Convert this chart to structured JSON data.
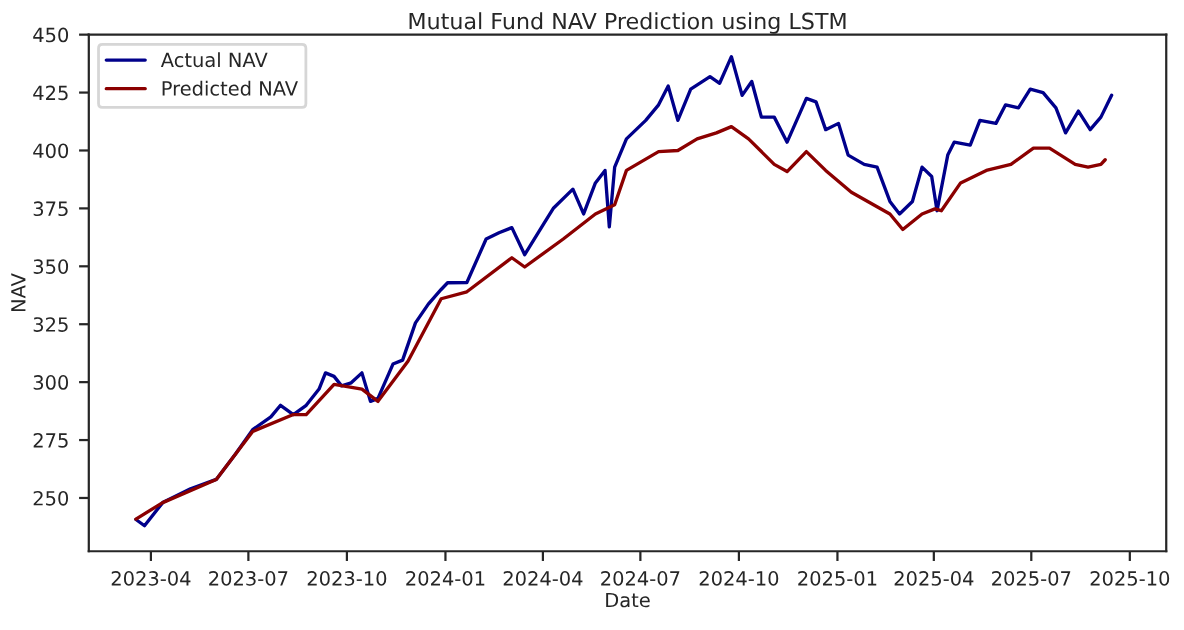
{
  "chart_data": {
    "type": "line",
    "title": "Mutual Fund NAV Prediction using LSTM",
    "xlabel": "Date",
    "ylabel": "NAV",
    "xlim": [
      "2023-02-02",
      "2025-11-04"
    ],
    "ylim": [
      227,
      450
    ],
    "xticks": [
      {
        "value": "2023-04-01",
        "label": "2023-04"
      },
      {
        "value": "2023-07-01",
        "label": "2023-07"
      },
      {
        "value": "2023-10-01",
        "label": "2023-10"
      },
      {
        "value": "2024-01-01",
        "label": "2024-01"
      },
      {
        "value": "2024-04-01",
        "label": "2024-04"
      },
      {
        "value": "2024-07-01",
        "label": "2024-07"
      },
      {
        "value": "2024-10-01",
        "label": "2024-10"
      },
      {
        "value": "2025-01-01",
        "label": "2025-01"
      },
      {
        "value": "2025-04-01",
        "label": "2025-04"
      },
      {
        "value": "2025-07-01",
        "label": "2025-07"
      },
      {
        "value": "2025-10-01",
        "label": "2025-10"
      }
    ],
    "yticks": [
      250,
      275,
      300,
      325,
      350,
      375,
      400,
      425,
      450
    ],
    "grid": false,
    "legend": "top left",
    "series": [
      {
        "name": "Actual NAV",
        "color": "#00008b",
        "x": [
          "2023-03-18",
          "2023-03-26",
          "2023-04-12",
          "2023-05-08",
          "2023-06-01",
          "2023-06-19",
          "2023-07-05",
          "2023-07-22",
          "2023-07-31",
          "2023-08-12",
          "2023-08-24",
          "2023-09-05",
          "2023-09-11",
          "2023-09-19",
          "2023-09-26",
          "2023-10-05",
          "2023-10-15",
          "2023-10-23",
          "2023-10-30",
          "2023-11-13",
          "2023-11-22",
          "2023-12-04",
          "2023-12-16",
          "2023-12-28",
          "2024-01-03",
          "2024-01-21",
          "2024-02-08",
          "2024-02-20",
          "2024-03-03",
          "2024-03-15",
          "2024-04-02",
          "2024-04-11",
          "2024-04-29",
          "2024-05-09",
          "2024-05-20",
          "2024-05-29",
          "2024-06-02",
          "2024-06-07",
          "2024-06-18",
          "2024-07-06",
          "2024-07-18",
          "2024-07-27",
          "2024-08-05",
          "2024-08-17",
          "2024-09-04",
          "2024-09-13",
          "2024-09-24",
          "2024-10-04",
          "2024-10-13",
          "2024-10-22",
          "2024-11-03",
          "2024-11-15",
          "2024-12-03",
          "2024-12-12",
          "2024-12-21",
          "2025-01-02",
          "2025-01-11",
          "2025-01-26",
          "2025-02-07",
          "2025-02-19",
          "2025-02-28",
          "2025-03-12",
          "2025-03-21",
          "2025-03-30",
          "2025-04-04",
          "2025-04-14",
          "2025-04-20",
          "2025-05-05",
          "2025-05-14",
          "2025-05-29",
          "2025-06-07",
          "2025-06-19",
          "2025-06-30",
          "2025-07-12",
          "2025-07-24",
          "2025-08-02",
          "2025-08-14",
          "2025-08-25",
          "2025-09-04",
          "2025-09-14"
        ],
        "values": [
          240.7,
          238,
          248,
          254,
          258,
          269,
          279.5,
          285,
          290,
          286,
          290,
          297,
          304,
          302.5,
          298.4,
          299.7,
          304,
          291.7,
          293,
          307.8,
          309.5,
          325.6,
          333.7,
          340,
          342.9,
          343,
          361.8,
          364.5,
          366.7,
          355,
          368.5,
          375.2,
          383.3,
          372.6,
          386,
          391.4,
          367,
          392.8,
          405,
          413,
          419.7,
          427.8,
          413,
          426.5,
          431.9,
          429,
          440.5,
          423.8,
          429.8,
          414.4,
          414.4,
          403.6,
          422.5,
          421,
          409,
          411.7,
          398,
          394,
          392.8,
          378,
          372.6,
          378,
          392.8,
          388.8,
          374,
          398,
          403.6,
          402.3,
          413,
          411.7,
          419.7,
          418.4,
          426.5,
          425,
          418.4,
          407.6,
          417,
          409,
          414.4,
          423.8
        ]
      },
      {
        "name": "Predicted NAV",
        "color": "#8b0000",
        "x": [
          "2023-03-18",
          "2023-04-12",
          "2023-06-01",
          "2023-07-05",
          "2023-08-12",
          "2023-08-24",
          "2023-09-19",
          "2023-10-15",
          "2023-10-30",
          "2023-11-27",
          "2023-12-28",
          "2024-01-21",
          "2024-03-03",
          "2024-03-15",
          "2024-04-20",
          "2024-05-20",
          "2024-06-07",
          "2024-06-18",
          "2024-07-18",
          "2024-08-05",
          "2024-08-23",
          "2024-09-10",
          "2024-09-24",
          "2024-10-10",
          "2024-11-03",
          "2024-11-15",
          "2024-12-03",
          "2024-12-21",
          "2025-01-14",
          "2025-02-19",
          "2025-03-03",
          "2025-03-21",
          "2025-04-02",
          "2025-04-08",
          "2025-04-26",
          "2025-05-20",
          "2025-06-12",
          "2025-07-03",
          "2025-07-18",
          "2025-08-11",
          "2025-08-23",
          "2025-09-04",
          "2025-09-08"
        ],
        "values": [
          240.9,
          248,
          258,
          278.7,
          286,
          286,
          299,
          297,
          291.7,
          309,
          336,
          339,
          353.7,
          349.7,
          361.8,
          372.6,
          376.6,
          391.4,
          399.5,
          400,
          405,
          407.6,
          410.3,
          405,
          394,
          390.9,
          399.5,
          391.4,
          382,
          372.6,
          365.9,
          372.6,
          374.8,
          374,
          386,
          391.4,
          394,
          401,
          401,
          394,
          392.8,
          394,
          396
        ]
      }
    ]
  }
}
